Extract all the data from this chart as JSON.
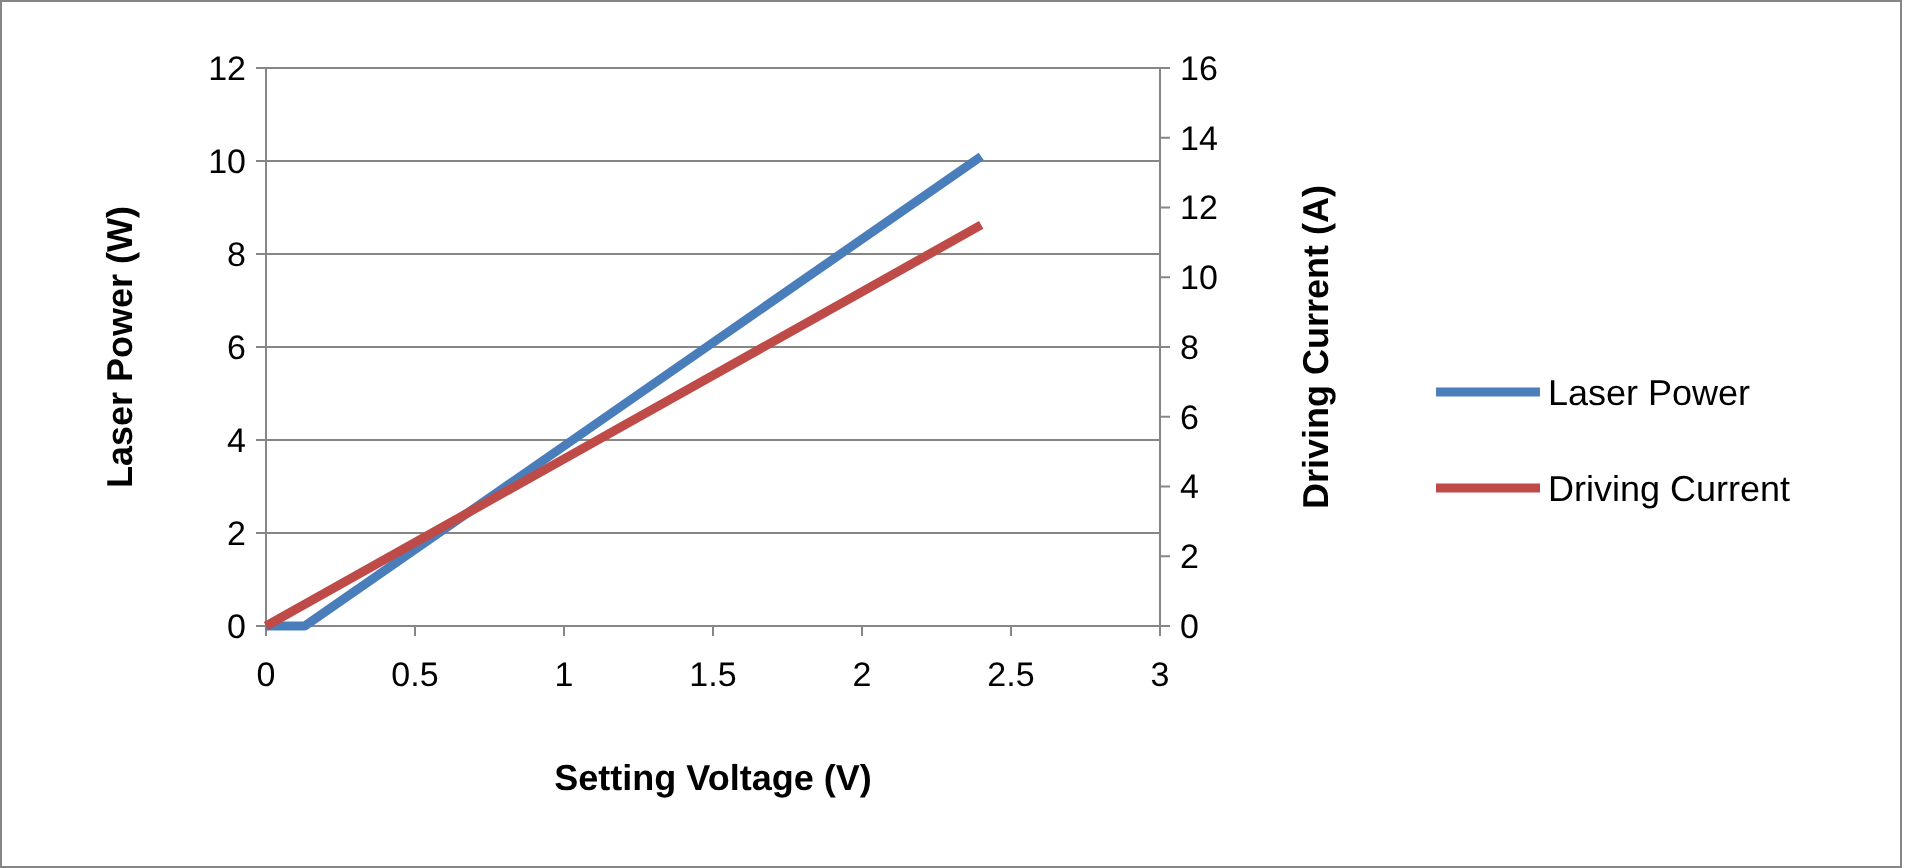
{
  "chart_data": {
    "type": "line",
    "xlabel": "Setting Voltage (V)",
    "ylabel": "Laser Power (W)",
    "y2label": "Driving Current (A)",
    "xlim": [
      0,
      3
    ],
    "xticks": [
      0,
      0.5,
      1,
      1.5,
      2,
      2.5,
      3
    ],
    "ylim": [
      0,
      12
    ],
    "yticks": [
      0,
      2,
      4,
      6,
      8,
      10,
      12
    ],
    "y2lim": [
      0,
      16
    ],
    "y2ticks": [
      0,
      2,
      4,
      6,
      8,
      10,
      12,
      14,
      16
    ],
    "grid": "y",
    "legend": "right",
    "line_style": "solid",
    "marker": "none",
    "series": [
      {
        "name": "Laser Power",
        "color": "#4a7ebb",
        "x": [
          0,
          0.13,
          2.4
        ],
        "values": [
          0,
          0,
          10.1
        ]
      },
      {
        "name": "Driving Current",
        "color": "#be4b48",
        "axis": "y2",
        "x": [
          0,
          2.4
        ],
        "values": [
          0,
          11.5
        ]
      }
    ]
  }
}
